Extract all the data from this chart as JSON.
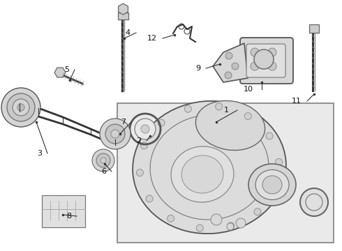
{
  "figsize": [
    4.9,
    3.6
  ],
  "dpi": 100,
  "bg_color": "#ffffff",
  "line_color": "#333333",
  "gray_fill": "#e8e8e8",
  "light_gray": "#f0f0f0",
  "box_bg": "#e8e8e8",
  "text_color": "#111111"
}
